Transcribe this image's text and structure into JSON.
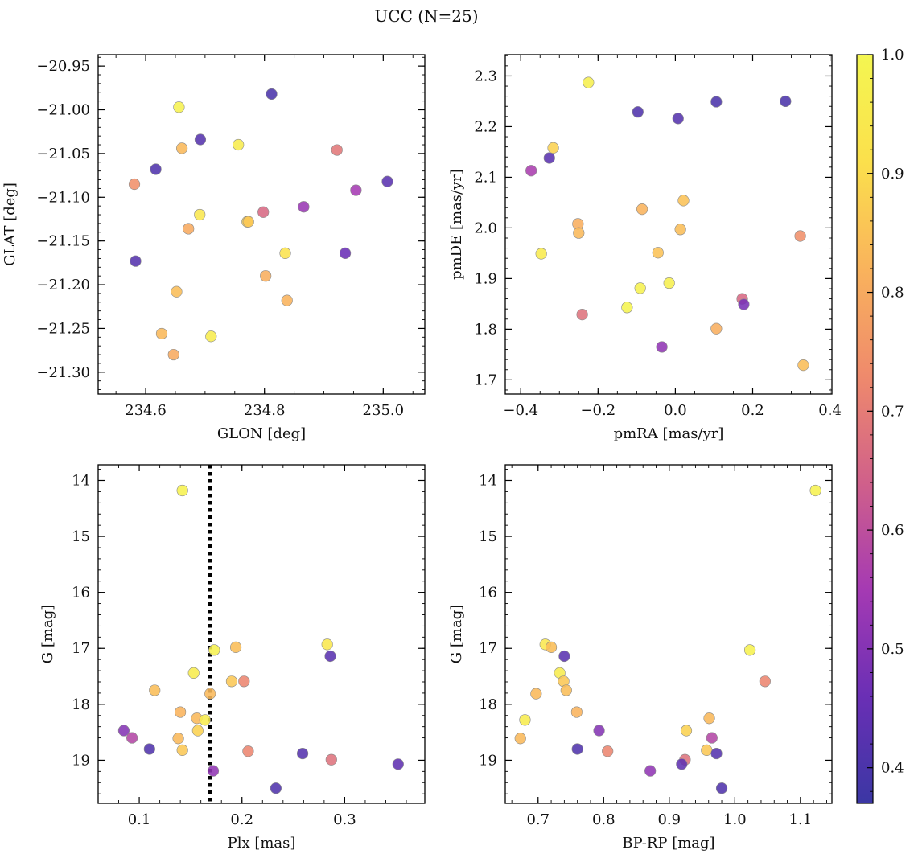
{
  "title": "UCC (N=25)",
  "colorbar": {
    "range": [
      0.37,
      1.0
    ],
    "ticks": [
      0.4,
      0.5,
      0.6,
      0.7,
      0.8,
      0.9,
      1.0
    ],
    "tick_labels": [
      "0.4",
      "0.5",
      "0.6",
      "0.7",
      "0.8",
      "0.9",
      "1.0"
    ],
    "colormap": "plasma",
    "stops": [
      "#3b37a4",
      "#6a2fb5",
      "#a53ab3",
      "#d0608a",
      "#ef8a6c",
      "#f9b35c",
      "#fbe04c",
      "#f4f651"
    ]
  },
  "marker_edge_color": "#8a8a8a",
  "chart_data": [
    {
      "type": "scatter",
      "xlabel": "GLON [deg]",
      "ylabel": "GLAT [deg]",
      "xlim": [
        234.52,
        235.07
      ],
      "ylim": [
        -21.325,
        -20.937
      ],
      "xticks": [
        234.6,
        234.8,
        235.0
      ],
      "xtick_labels": [
        "234.6",
        "234.8",
        "235.0"
      ],
      "yticks": [
        -20.95,
        -21.0,
        -21.05,
        -21.1,
        -21.15,
        -21.2,
        -21.25,
        -21.3
      ],
      "ytick_labels": [
        "−20.95",
        "−21.00",
        "−21.05",
        "−21.10",
        "−21.15",
        "−21.20",
        "−21.25",
        "−21.30"
      ],
      "points": [
        {
          "x": 234.656,
          "y": -20.997,
          "c": 0.98
        },
        {
          "x": 234.812,
          "y": -20.982,
          "c": 0.4
        },
        {
          "x": 234.692,
          "y": -21.034,
          "c": 0.42
        },
        {
          "x": 234.661,
          "y": -21.044,
          "c": 0.83
        },
        {
          "x": 234.756,
          "y": -21.04,
          "c": 0.96
        },
        {
          "x": 234.922,
          "y": -21.046,
          "c": 0.69
        },
        {
          "x": 234.617,
          "y": -21.068,
          "c": 0.41
        },
        {
          "x": 234.581,
          "y": -21.085,
          "c": 0.74
        },
        {
          "x": 234.954,
          "y": -21.092,
          "c": 0.55
        },
        {
          "x": 235.007,
          "y": -21.082,
          "c": 0.43
        },
        {
          "x": 234.866,
          "y": -21.111,
          "c": 0.53
        },
        {
          "x": 234.798,
          "y": -21.117,
          "c": 0.66
        },
        {
          "x": 234.691,
          "y": -21.12,
          "c": 0.94
        },
        {
          "x": 234.771,
          "y": -21.128,
          "c": 0.88
        },
        {
          "x": 234.672,
          "y": -21.136,
          "c": 0.8
        },
        {
          "x": 234.835,
          "y": -21.164,
          "c": 0.92
        },
        {
          "x": 234.936,
          "y": -21.164,
          "c": 0.46
        },
        {
          "x": 234.583,
          "y": -21.173,
          "c": 0.42
        },
        {
          "x": 234.802,
          "y": -21.19,
          "c": 0.81
        },
        {
          "x": 234.652,
          "y": -21.208,
          "c": 0.84
        },
        {
          "x": 234.838,
          "y": -21.218,
          "c": 0.82
        },
        {
          "x": 234.627,
          "y": -21.256,
          "c": 0.83
        },
        {
          "x": 234.71,
          "y": -21.259,
          "c": 0.96
        },
        {
          "x": 234.647,
          "y": -21.28,
          "c": 0.8
        },
        {
          "x": 234.773,
          "y": -21.128,
          "c": 0.86
        }
      ]
    },
    {
      "type": "scatter",
      "xlabel": "pmRA [mas/yr]",
      "ylabel": "pmDE [mas/yr]",
      "xlim": [
        -0.44,
        0.405
      ],
      "ylim": [
        1.672,
        2.342
      ],
      "xticks": [
        -0.4,
        -0.2,
        0.0,
        0.2,
        0.4
      ],
      "xtick_labels": [
        "−0.4",
        "−0.2",
        "0.0",
        "0.2",
        "0.4"
      ],
      "yticks": [
        1.7,
        1.8,
        1.9,
        2.0,
        2.1,
        2.2,
        2.3
      ],
      "ytick_labels": [
        "1.7",
        "1.8",
        "1.9",
        "2.0",
        "2.1",
        "2.2",
        "2.3"
      ],
      "points": [
        {
          "x": -0.225,
          "y": 2.287,
          "c": 0.97
        },
        {
          "x": -0.097,
          "y": 2.229,
          "c": 0.41
        },
        {
          "x": 0.007,
          "y": 2.216,
          "c": 0.42
        },
        {
          "x": 0.106,
          "y": 2.249,
          "c": 0.4
        },
        {
          "x": 0.285,
          "y": 2.25,
          "c": 0.4
        },
        {
          "x": -0.316,
          "y": 2.158,
          "c": 0.88
        },
        {
          "x": -0.373,
          "y": 2.113,
          "c": 0.56
        },
        {
          "x": -0.326,
          "y": 2.138,
          "c": 0.43
        },
        {
          "x": 0.021,
          "y": 2.054,
          "c": 0.85
        },
        {
          "x": -0.086,
          "y": 2.037,
          "c": 0.82
        },
        {
          "x": -0.252,
          "y": 2.008,
          "c": 0.81
        },
        {
          "x": -0.25,
          "y": 1.99,
          "c": 0.83
        },
        {
          "x": 0.013,
          "y": 1.997,
          "c": 0.84
        },
        {
          "x": 0.323,
          "y": 1.984,
          "c": 0.74
        },
        {
          "x": -0.347,
          "y": 1.949,
          "c": 0.95
        },
        {
          "x": -0.045,
          "y": 1.951,
          "c": 0.85
        },
        {
          "x": -0.091,
          "y": 1.881,
          "c": 0.98
        },
        {
          "x": -0.016,
          "y": 1.891,
          "c": 0.97
        },
        {
          "x": 0.173,
          "y": 1.86,
          "c": 0.66
        },
        {
          "x": 0.177,
          "y": 1.849,
          "c": 0.48
        },
        {
          "x": -0.125,
          "y": 1.843,
          "c": 0.99
        },
        {
          "x": -0.241,
          "y": 1.829,
          "c": 0.68
        },
        {
          "x": 0.106,
          "y": 1.801,
          "c": 0.81
        },
        {
          "x": -0.035,
          "y": 1.765,
          "c": 0.52
        },
        {
          "x": 0.331,
          "y": 1.729,
          "c": 0.84
        }
      ]
    },
    {
      "type": "scatter",
      "xlabel": "Plx [mas]",
      "ylabel": "G [mag]",
      "xlim": [
        0.06,
        0.378
      ],
      "ylim": [
        19.77,
        13.72
      ],
      "invert_y": true,
      "xticks": [
        0.1,
        0.2,
        0.3
      ],
      "xtick_labels": [
        "0.1",
        "0.2",
        "0.3"
      ],
      "yticks": [
        14,
        15,
        16,
        17,
        18,
        19
      ],
      "ytick_labels": [
        "14",
        "15",
        "16",
        "17",
        "18",
        "19"
      ],
      "vline": {
        "x": 0.169,
        "style": "dotted"
      },
      "points": [
        {
          "x": 0.142,
          "y": 14.18,
          "c": 0.98
        },
        {
          "x": 0.173,
          "y": 17.03,
          "c": 0.98
        },
        {
          "x": 0.194,
          "y": 16.98,
          "c": 0.84
        },
        {
          "x": 0.283,
          "y": 16.93,
          "c": 0.94
        },
        {
          "x": 0.286,
          "y": 17.14,
          "c": 0.43
        },
        {
          "x": 0.153,
          "y": 17.44,
          "c": 0.96
        },
        {
          "x": 0.19,
          "y": 17.59,
          "c": 0.86
        },
        {
          "x": 0.202,
          "y": 17.59,
          "c": 0.72
        },
        {
          "x": 0.115,
          "y": 17.75,
          "c": 0.84
        },
        {
          "x": 0.169,
          "y": 17.81,
          "c": 0.83
        },
        {
          "x": 0.14,
          "y": 18.14,
          "c": 0.82
        },
        {
          "x": 0.156,
          "y": 18.25,
          "c": 0.83
        },
        {
          "x": 0.164,
          "y": 18.28,
          "c": 0.96
        },
        {
          "x": 0.157,
          "y": 18.47,
          "c": 0.88
        },
        {
          "x": 0.085,
          "y": 18.47,
          "c": 0.5
        },
        {
          "x": 0.093,
          "y": 18.6,
          "c": 0.58
        },
        {
          "x": 0.138,
          "y": 18.61,
          "c": 0.83
        },
        {
          "x": 0.11,
          "y": 18.8,
          "c": 0.41
        },
        {
          "x": 0.142,
          "y": 18.82,
          "c": 0.86
        },
        {
          "x": 0.206,
          "y": 18.84,
          "c": 0.72
        },
        {
          "x": 0.259,
          "y": 18.88,
          "c": 0.42
        },
        {
          "x": 0.287,
          "y": 18.99,
          "c": 0.68
        },
        {
          "x": 0.352,
          "y": 19.07,
          "c": 0.44
        },
        {
          "x": 0.172,
          "y": 19.19,
          "c": 0.52
        },
        {
          "x": 0.233,
          "y": 19.5,
          "c": 0.41
        }
      ]
    },
    {
      "type": "scatter",
      "xlabel": "BP-RP [mag]",
      "ylabel": "G [mag]",
      "xlim": [
        0.65,
        1.148
      ],
      "ylim": [
        19.77,
        13.72
      ],
      "invert_y": true,
      "xticks": [
        0.7,
        0.8,
        0.9,
        1.0,
        1.1
      ],
      "xtick_labels": [
        "0.7",
        "0.8",
        "0.9",
        "1.0",
        "1.1"
      ],
      "yticks": [
        14,
        15,
        16,
        17,
        18,
        19
      ],
      "ytick_labels": [
        "14",
        "15",
        "16",
        "17",
        "18",
        "19"
      ],
      "points": [
        {
          "x": 1.123,
          "y": 14.18,
          "c": 0.98
        },
        {
          "x": 0.711,
          "y": 16.93,
          "c": 0.94
        },
        {
          "x": 0.72,
          "y": 16.98,
          "c": 0.84
        },
        {
          "x": 0.74,
          "y": 17.14,
          "c": 0.43
        },
        {
          "x": 1.023,
          "y": 17.03,
          "c": 0.98
        },
        {
          "x": 0.733,
          "y": 17.44,
          "c": 0.96
        },
        {
          "x": 0.739,
          "y": 17.59,
          "c": 0.86
        },
        {
          "x": 1.046,
          "y": 17.59,
          "c": 0.72
        },
        {
          "x": 0.743,
          "y": 17.75,
          "c": 0.84
        },
        {
          "x": 0.697,
          "y": 17.81,
          "c": 0.83
        },
        {
          "x": 0.759,
          "y": 18.14,
          "c": 0.82
        },
        {
          "x": 0.961,
          "y": 18.25,
          "c": 0.83
        },
        {
          "x": 0.68,
          "y": 18.28,
          "c": 0.96
        },
        {
          "x": 0.793,
          "y": 18.47,
          "c": 0.5
        },
        {
          "x": 0.926,
          "y": 18.47,
          "c": 0.88
        },
        {
          "x": 0.673,
          "y": 18.61,
          "c": 0.83
        },
        {
          "x": 0.965,
          "y": 18.6,
          "c": 0.58
        },
        {
          "x": 0.76,
          "y": 18.8,
          "c": 0.41
        },
        {
          "x": 0.806,
          "y": 18.84,
          "c": 0.72
        },
        {
          "x": 0.957,
          "y": 18.82,
          "c": 0.86
        },
        {
          "x": 0.972,
          "y": 18.88,
          "c": 0.42
        },
        {
          "x": 0.924,
          "y": 18.99,
          "c": 0.68
        },
        {
          "x": 0.919,
          "y": 19.07,
          "c": 0.44
        },
        {
          "x": 0.871,
          "y": 19.19,
          "c": 0.52
        },
        {
          "x": 0.98,
          "y": 19.5,
          "c": 0.41
        }
      ]
    }
  ]
}
